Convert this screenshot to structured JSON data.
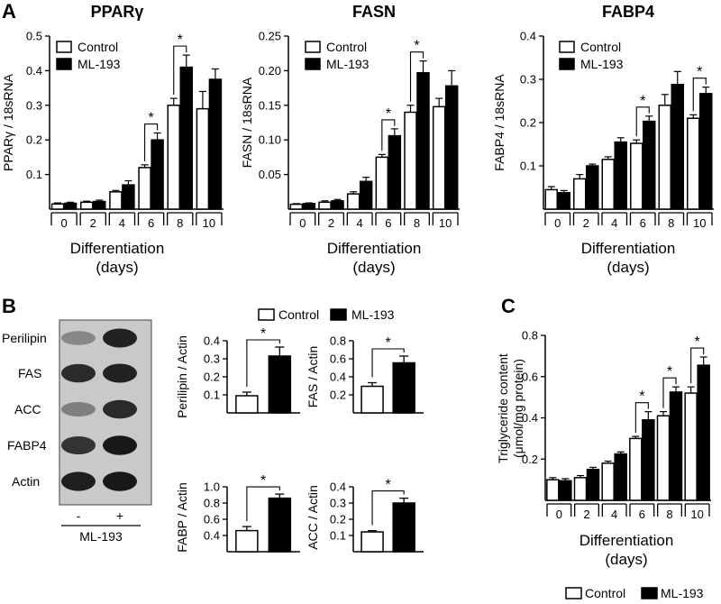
{
  "panels": {
    "a": "A",
    "b": "B",
    "c": "C"
  },
  "legend": {
    "control": "Control",
    "treatment": "ML-193"
  },
  "colors": {
    "control": "#ffffff",
    "treatment": "#000000",
    "stroke": "#000000"
  },
  "western_blot": {
    "rows": [
      "Perilipin",
      "FAS",
      "ACC",
      "FABP4",
      "Actin"
    ],
    "lanes": [
      "-",
      "+"
    ],
    "treatment_label": "ML-193",
    "band_intensity": [
      [
        0.35,
        0.9
      ],
      [
        0.85,
        0.9
      ],
      [
        0.4,
        0.85
      ],
      [
        0.8,
        0.95
      ],
      [
        0.92,
        0.95
      ]
    ]
  },
  "chart_data": [
    {
      "id": "A1",
      "type": "bar",
      "title": "PPARγ",
      "ylabel": "PPARγ / 18sRNA",
      "xlabel": "Differentiation",
      "xlabel2": "(days)",
      "categories": [
        "0",
        "2",
        "4",
        "6",
        "8",
        "10"
      ],
      "ylim": [
        0,
        0.5
      ],
      "yticks": [
        "0.1",
        "0.2",
        "0.3",
        "0.4",
        "0.5"
      ],
      "series": [
        {
          "name": "Control",
          "values": [
            0.015,
            0.02,
            0.05,
            0.12,
            0.3,
            0.29
          ],
          "errors": [
            0.003,
            0.003,
            0.004,
            0.008,
            0.02,
            0.05
          ]
        },
        {
          "name": "ML-193",
          "values": [
            0.017,
            0.022,
            0.07,
            0.2,
            0.41,
            0.375
          ],
          "errors": [
            0.003,
            0.004,
            0.012,
            0.02,
            0.035,
            0.03
          ]
        }
      ],
      "significance": [
        {
          "category": 3,
          "label": "*"
        },
        {
          "category": 4,
          "label": "*"
        }
      ]
    },
    {
      "id": "A2",
      "type": "bar",
      "title": "FASN",
      "ylabel": "FASN / 18sRNA",
      "xlabel": "Differentiation",
      "xlabel2": "(days)",
      "categories": [
        "0",
        "2",
        "4",
        "6",
        "8",
        "10"
      ],
      "ylim": [
        0,
        0.25
      ],
      "yticks": [
        "0.05",
        "0.10",
        "0.15",
        "0.20",
        "0.25"
      ],
      "series": [
        {
          "name": "Control",
          "values": [
            0.007,
            0.01,
            0.022,
            0.075,
            0.14,
            0.148
          ],
          "errors": [
            0.001,
            0.002,
            0.003,
            0.004,
            0.01,
            0.012
          ]
        },
        {
          "name": "ML-193",
          "values": [
            0.008,
            0.012,
            0.04,
            0.106,
            0.197,
            0.178
          ],
          "errors": [
            0.001,
            0.002,
            0.006,
            0.01,
            0.017,
            0.022
          ]
        }
      ],
      "significance": [
        {
          "category": 3,
          "label": "*"
        },
        {
          "category": 4,
          "label": "*"
        }
      ]
    },
    {
      "id": "A3",
      "type": "bar",
      "title": "FABP4",
      "ylabel": "FABP4 / 18sRNA",
      "xlabel": "Differentiation",
      "xlabel2": "(days)",
      "categories": [
        "0",
        "2",
        "4",
        "6",
        "8",
        "10"
      ],
      "ylim": [
        0,
        0.4
      ],
      "yticks": [
        "0.1",
        "0.2",
        "0.3",
        "0.4"
      ],
      "series": [
        {
          "name": "Control",
          "values": [
            0.045,
            0.07,
            0.115,
            0.152,
            0.24,
            0.21
          ],
          "errors": [
            0.007,
            0.01,
            0.006,
            0.008,
            0.025,
            0.008
          ]
        },
        {
          "name": "ML-193",
          "values": [
            0.038,
            0.1,
            0.155,
            0.203,
            0.288,
            0.267
          ],
          "errors": [
            0.005,
            0.004,
            0.01,
            0.012,
            0.03,
            0.015
          ]
        }
      ],
      "significance": [
        {
          "category": 3,
          "label": "*"
        },
        {
          "category": 5,
          "label": "*"
        }
      ]
    },
    {
      "id": "B1",
      "type": "bar",
      "ylabel": "Perilipin / Actin",
      "ylim": [
        0,
        0.4
      ],
      "yticks": [
        "0.1",
        "0.2",
        "0.3",
        "0.4"
      ],
      "series": [
        {
          "name": "Control",
          "values": [
            0.095
          ],
          "errors": [
            0.02
          ]
        },
        {
          "name": "ML-193",
          "values": [
            0.315
          ],
          "errors": [
            0.05
          ]
        }
      ],
      "significance": [
        {
          "label": "*"
        }
      ]
    },
    {
      "id": "B2",
      "type": "bar",
      "ylabel": "FAS / Actin",
      "ylim": [
        0,
        0.8
      ],
      "yticks": [
        "0.2",
        "0.4",
        "0.6",
        "0.8"
      ],
      "series": [
        {
          "name": "Control",
          "values": [
            0.295
          ],
          "errors": [
            0.04
          ]
        },
        {
          "name": "ML-193",
          "values": [
            0.555
          ],
          "errors": [
            0.075
          ]
        }
      ],
      "significance": [
        {
          "label": "*"
        }
      ]
    },
    {
      "id": "B3",
      "type": "bar",
      "ylabel": "FABP / Actin",
      "ylim": [
        0,
        1.0
      ],
      "yticks": [
        "0.4",
        "0.6",
        "0.8",
        "1.0"
      ],
      "series": [
        {
          "name": "Control",
          "values": [
            0.46
          ],
          "errors": [
            0.05
          ]
        },
        {
          "name": "ML-193",
          "values": [
            0.86
          ],
          "errors": [
            0.05
          ]
        }
      ],
      "significance": [
        {
          "label": "*"
        }
      ]
    },
    {
      "id": "B4",
      "type": "bar",
      "ylabel": "ACC / Actin",
      "ylim": [
        0,
        0.4
      ],
      "yticks": [
        "0.1",
        "0.2",
        "0.3",
        "0.4"
      ],
      "series": [
        {
          "name": "Control",
          "values": [
            0.122
          ],
          "errors": [
            0.008
          ]
        },
        {
          "name": "ML-193",
          "values": [
            0.3
          ],
          "errors": [
            0.03
          ]
        }
      ],
      "significance": [
        {
          "label": "*"
        }
      ]
    },
    {
      "id": "C",
      "type": "bar",
      "ylabel": "Triglyceride content",
      "ylabel2": "(μmol/mg protein)",
      "xlabel": "Differentiation",
      "xlabel2": "(days)",
      "categories": [
        "0",
        "2",
        "4",
        "6",
        "8",
        "10"
      ],
      "ylim": [
        0,
        0.8
      ],
      "yticks": [
        "0.2",
        "0.4",
        "0.6",
        "0.8"
      ],
      "series": [
        {
          "name": "Control",
          "values": [
            0.1,
            0.11,
            0.18,
            0.3,
            0.41,
            0.52
          ],
          "errors": [
            0.01,
            0.01,
            0.01,
            0.01,
            0.02,
            0.03
          ]
        },
        {
          "name": "ML-193",
          "values": [
            0.095,
            0.15,
            0.225,
            0.39,
            0.525,
            0.655
          ],
          "errors": [
            0.01,
            0.01,
            0.01,
            0.04,
            0.025,
            0.04
          ]
        }
      ],
      "significance": [
        {
          "category": 3,
          "label": "*"
        },
        {
          "category": 4,
          "label": "*"
        },
        {
          "category": 5,
          "label": "*"
        }
      ]
    }
  ]
}
